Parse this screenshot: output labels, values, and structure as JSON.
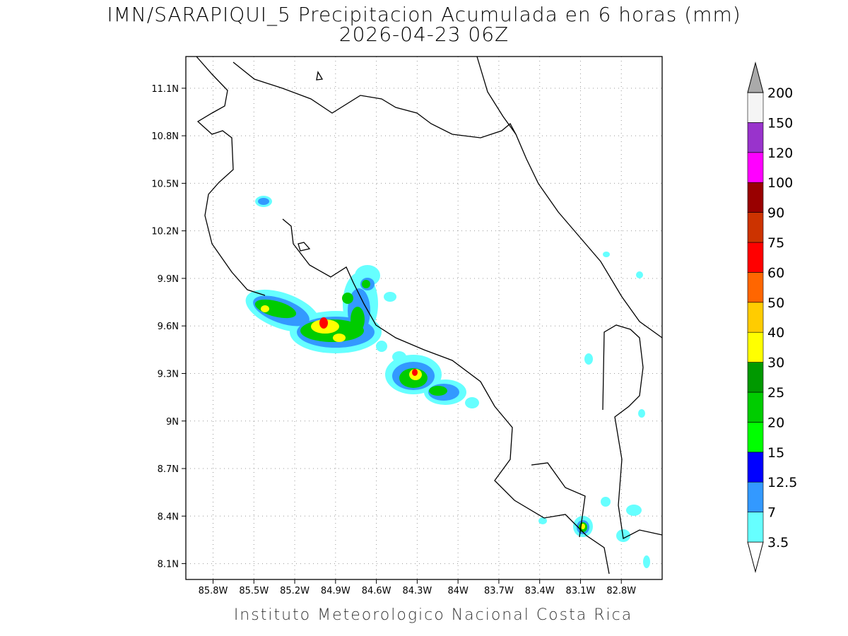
{
  "map": {
    "title": "IMN/SARAPIQUI_5 Precipitacion Acumulada en 6 horas (mm)",
    "subtitle": "2026-04-23 06Z",
    "footer": "Instituto Meteorologico Nacional Costa Rica",
    "xlim": [
      -86.0,
      -82.5
    ],
    "ylim": [
      8.0,
      11.3
    ],
    "grid": true,
    "xticks": [
      {
        "value": -85.8,
        "label": "85.8W"
      },
      {
        "value": -85.5,
        "label": "85.5W"
      },
      {
        "value": -85.2,
        "label": "85.2W"
      },
      {
        "value": -84.9,
        "label": "84.9W"
      },
      {
        "value": -84.6,
        "label": "84.6W"
      },
      {
        "value": -84.3,
        "label": "84.3W"
      },
      {
        "value": -84.0,
        "label": "84W"
      },
      {
        "value": -83.7,
        "label": "83.7W"
      },
      {
        "value": -83.4,
        "label": "83.4W"
      },
      {
        "value": -83.1,
        "label": "83.1W"
      },
      {
        "value": -82.8,
        "label": "82.8W"
      }
    ],
    "yticks": [
      {
        "value": 8.1,
        "label": "8.1N"
      },
      {
        "value": 8.4,
        "label": "8.4N"
      },
      {
        "value": 8.7,
        "label": "8.7N"
      },
      {
        "value": 9.0,
        "label": "9N"
      },
      {
        "value": 9.3,
        "label": "9.3N"
      },
      {
        "value": 9.6,
        "label": "9.6N"
      },
      {
        "value": 9.9,
        "label": "9.9N"
      },
      {
        "value": 10.2,
        "label": "10.2N"
      },
      {
        "value": 10.5,
        "label": "10.5N"
      },
      {
        "value": 10.8,
        "label": "10.8N"
      },
      {
        "value": 11.1,
        "label": "11.1N"
      }
    ],
    "colorbar": {
      "levels": [
        3.5,
        7,
        12.5,
        15,
        20,
        25,
        30,
        40,
        50,
        60,
        75,
        90,
        100,
        120,
        150,
        200
      ],
      "colors": [
        "#ffffff",
        "#66ffff",
        "#3399ff",
        "#0000ff",
        "#00ff00",
        "#00cc00",
        "#009900",
        "#ffff00",
        "#ffcc00",
        "#ff6600",
        "#ff0000",
        "#cc3300",
        "#990000",
        "#ff00ff",
        "#9933cc",
        "#f5f5f5",
        "#aaaaaa"
      ]
    }
  }
}
